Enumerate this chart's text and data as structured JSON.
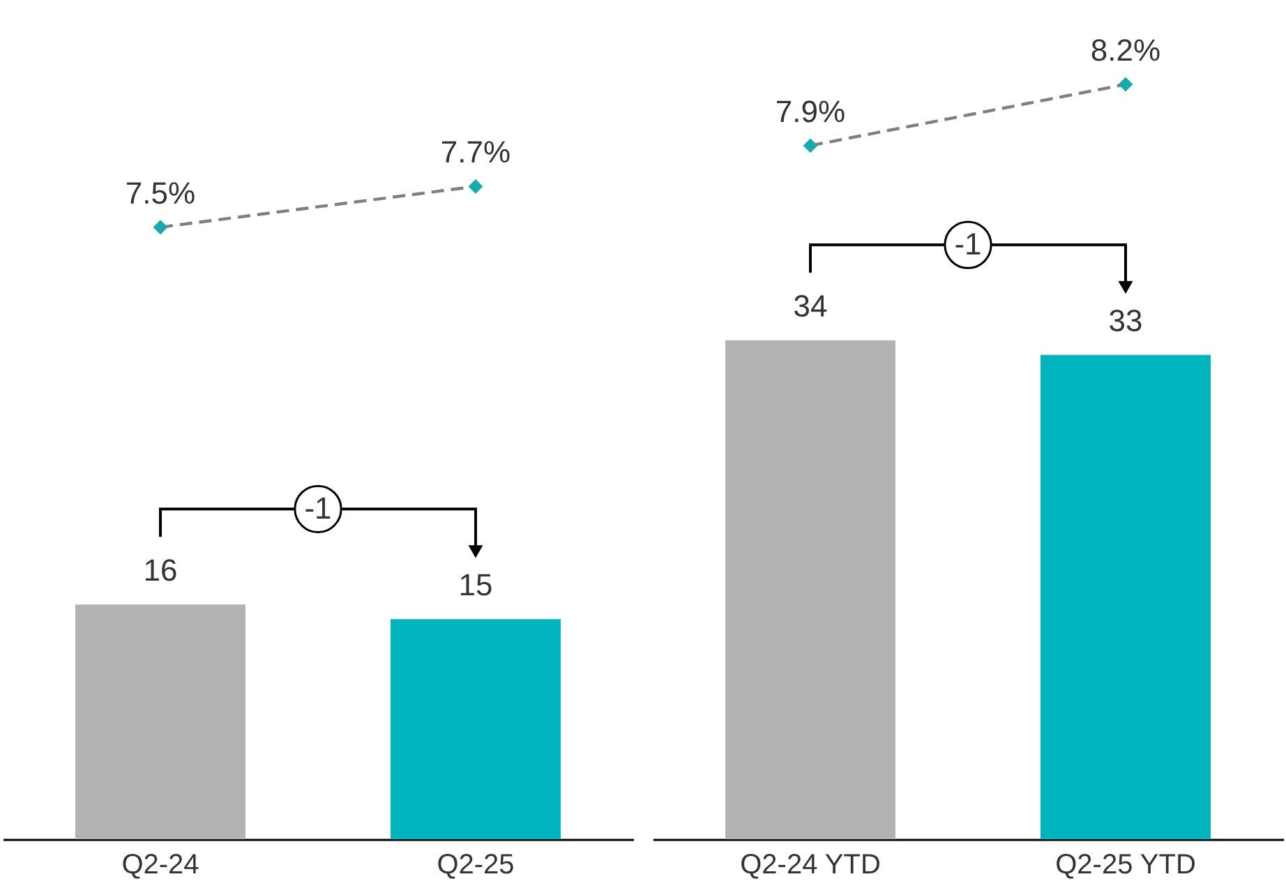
{
  "chart_data": [
    {
      "type": "bar",
      "categories": [
        "Q2-24",
        "Q2-25"
      ],
      "ylim": [
        0,
        57
      ],
      "y2lim": [
        4.5,
        8.6
      ],
      "data_labels": true,
      "annotations": [
        "-1"
      ],
      "series": [
        {
          "colors": [
            "#b3b3b3",
            "#00b4be"
          ],
          "values": [
            16,
            15
          ]
        },
        {
          "type": "line",
          "axis": "y2",
          "color": "#7f7f7f",
          "colors": [
            "#1aa9ae",
            "#1aa9ae"
          ],
          "marker": "diamond",
          "line_style": "dashed",
          "values": [
            7.5,
            7.7
          ],
          "value_labels": [
            "7.5%",
            "7.7%"
          ]
        }
      ]
    },
    {
      "type": "bar",
      "categories": [
        "Q2-24 YTD",
        "Q2-25 YTD"
      ],
      "ylim": [
        0,
        57
      ],
      "y2lim": [
        4.5,
        8.6
      ],
      "data_labels": true,
      "annotations": [
        "-1"
      ],
      "series": [
        {
          "colors": [
            "#b3b3b3",
            "#00b4be"
          ],
          "values": [
            34,
            33
          ]
        },
        {
          "type": "line",
          "axis": "y2",
          "color": "#7f7f7f",
          "colors": [
            "#1aa9ae",
            "#1aa9ae"
          ],
          "marker": "diamond",
          "line_style": "dashed",
          "values": [
            7.9,
            8.2
          ],
          "value_labels": [
            "7.9%",
            "8.2%"
          ]
        }
      ]
    }
  ]
}
